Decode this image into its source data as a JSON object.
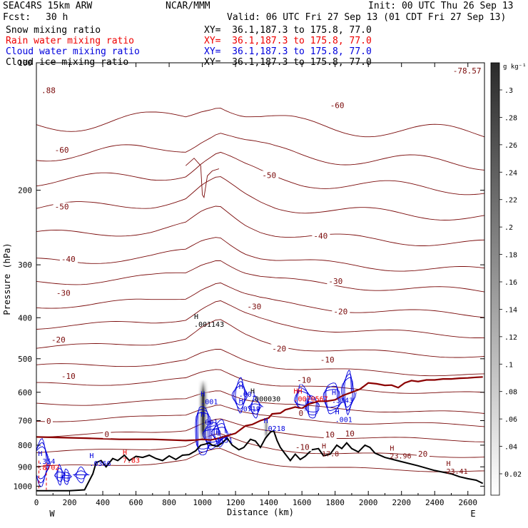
{
  "header": {
    "model": "SEAC4RS 15km ARW",
    "center": "NCAR/MMM",
    "init": "Init: 00 UTC Thu 26 Sep 13",
    "fcst_label": "Fcst:",
    "fcst_value": "30 h",
    "valid": "Valid: 06 UTC Fri 27 Sep 13 (01 CDT Fri 27 Sep 13)"
  },
  "fields": [
    {
      "name": "Snow mixing ratio",
      "xy": "XY=  36.1,187.3 to 175.8, 77.0",
      "color": "#000000"
    },
    {
      "name": "Rain water mixing ratio",
      "xy": "XY=  36.1,187.3 to 175.8, 77.0",
      "color": "#ee0000"
    },
    {
      "name": "Cloud water mixing ratio",
      "xy": "XY=  36.1,187.3 to 175.8, 77.0",
      "color": "#0000dd"
    },
    {
      "name": "Cloud ice mixing ratio",
      "xy": "XY=  36.1,187.3 to 175.8, 77.0",
      "color": "#000000"
    }
  ],
  "colors": {
    "temperature": "#7a0a0a",
    "freezing_level": "#8b0000",
    "terrain": "#000000",
    "cloud_water": "#0000dd",
    "rain": "#ee0000",
    "snow_shade": "#333333"
  },
  "chart_data": {
    "type": "cross-section",
    "xlabel": "Distance (km)",
    "ylabel": "Pressure (hPa)",
    "xlim": [
      0,
      2700
    ],
    "ylim": [
      1050,
      100
    ],
    "y_scale": "log",
    "x_ticks": [
      "0",
      "200",
      "400",
      "600",
      "800",
      "1000",
      "1200",
      "1400",
      "1600",
      "1800",
      "2000",
      "2200",
      "2400",
      "2600"
    ],
    "y_ticks": [
      "100",
      "200",
      "300",
      "400",
      "500",
      "600",
      "700",
      "800",
      "900",
      "1000"
    ],
    "end_labels": {
      "left": "W",
      "right": "E"
    },
    "colorbar": {
      "unit": "g kg⁻¹",
      "ticks": [
        "0.02",
        ".04",
        ".06",
        ".08",
        ".1",
        ".12",
        ".14",
        ".16",
        ".18",
        ".2",
        ".22",
        ".24",
        ".26",
        ".28",
        ".3"
      ]
    },
    "terrain": [
      [
        0,
        1025
      ],
      [
        200,
        1025
      ],
      [
        290,
        1020
      ],
      [
        340,
        935
      ],
      [
        360,
        880
      ],
      [
        390,
        870
      ],
      [
        420,
        900
      ],
      [
        460,
        860
      ],
      [
        490,
        870
      ],
      [
        530,
        845
      ],
      [
        560,
        870
      ],
      [
        600,
        850
      ],
      [
        640,
        855
      ],
      [
        680,
        845
      ],
      [
        720,
        860
      ],
      [
        760,
        870
      ],
      [
        800,
        848
      ],
      [
        840,
        865
      ],
      [
        880,
        845
      ],
      [
        920,
        842
      ],
      [
        960,
        825
      ],
      [
        990,
        800
      ],
      [
        1020,
        795
      ],
      [
        1040,
        790
      ],
      [
        1060,
        800
      ],
      [
        1090,
        805
      ],
      [
        1120,
        790
      ],
      [
        1150,
        770
      ],
      [
        1180,
        800
      ],
      [
        1220,
        820
      ],
      [
        1250,
        810
      ],
      [
        1290,
        775
      ],
      [
        1320,
        782
      ],
      [
        1350,
        810
      ],
      [
        1380,
        770
      ],
      [
        1410,
        745
      ],
      [
        1430,
        740
      ],
      [
        1450,
        780
      ],
      [
        1470,
        810
      ],
      [
        1500,
        840
      ],
      [
        1530,
        870
      ],
      [
        1560,
        840
      ],
      [
        1590,
        865
      ],
      [
        1620,
        850
      ],
      [
        1660,
        820
      ],
      [
        1700,
        815
      ],
      [
        1730,
        848
      ],
      [
        1770,
        840
      ],
      [
        1810,
        800
      ],
      [
        1840,
        815
      ],
      [
        1870,
        790
      ],
      [
        1900,
        815
      ],
      [
        1940,
        830
      ],
      [
        1980,
        800
      ],
      [
        2010,
        810
      ],
      [
        2040,
        835
      ],
      [
        2100,
        855
      ],
      [
        2200,
        875
      ],
      [
        2300,
        895
      ],
      [
        2400,
        918
      ],
      [
        2500,
        935
      ],
      [
        2550,
        950
      ],
      [
        2600,
        960
      ],
      [
        2650,
        968
      ],
      [
        2690,
        985
      ]
    ],
    "freezing_line": [
      [
        0,
        765
      ],
      [
        300,
        770
      ],
      [
        500,
        775
      ],
      [
        700,
        775
      ],
      [
        900,
        780
      ],
      [
        960,
        778
      ],
      [
        1000,
        775
      ],
      [
        1050,
        778
      ],
      [
        1100,
        770
      ],
      [
        1150,
        760
      ],
      [
        1200,
        750
      ],
      [
        1260,
        720
      ],
      [
        1300,
        715
      ],
      [
        1350,
        700
      ],
      [
        1400,
        690
      ],
      [
        1420,
        675
      ],
      [
        1470,
        672
      ],
      [
        1500,
        660
      ],
      [
        1530,
        655
      ],
      [
        1560,
        650
      ],
      [
        1600,
        655
      ],
      [
        1640,
        640
      ],
      [
        1700,
        630
      ],
      [
        1750,
        630
      ],
      [
        1800,
        625
      ],
      [
        1850,
        610
      ],
      [
        1900,
        600
      ],
      [
        1950,
        590
      ],
      [
        2000,
        570
      ],
      [
        2050,
        573
      ],
      [
        2100,
        578
      ],
      [
        2140,
        577
      ],
      [
        2180,
        585
      ],
      [
        2220,
        570
      ],
      [
        2260,
        563
      ],
      [
        2300,
        566
      ],
      [
        2350,
        561
      ],
      [
        2400,
        561
      ],
      [
        2450,
        558
      ],
      [
        2500,
        558
      ],
      [
        2550,
        556
      ],
      [
        2600,
        555
      ],
      [
        2650,
        553
      ],
      [
        2690,
        552
      ]
    ],
    "isotherm_labels": [
      {
        "t": "-60",
        "x": 110,
        "p": 163
      },
      {
        "t": "-60",
        "x": 1770,
        "p": 128
      },
      {
        "t": "-50",
        "x": 110,
        "p": 222
      },
      {
        "t": "-50",
        "x": 1360,
        "p": 187
      },
      {
        "t": "-40",
        "x": 150,
        "p": 295
      },
      {
        "t": "-40",
        "x": 1670,
        "p": 260
      },
      {
        "t": "-30",
        "x": 120,
        "p": 355
      },
      {
        "t": "-30",
        "x": 1270,
        "p": 382
      },
      {
        "t": "-30",
        "x": 1760,
        "p": 333
      },
      {
        "t": "-20",
        "x": 90,
        "p": 458
      },
      {
        "t": "-20",
        "x": 1420,
        "p": 480
      },
      {
        "t": "-20",
        "x": 1790,
        "p": 393
      },
      {
        "t": "-10",
        "x": 150,
        "p": 558
      },
      {
        "t": "-10",
        "x": 1570,
        "p": 570
      },
      {
        "t": "-10",
        "x": 1710,
        "p": 510
      },
      {
        "t": "0",
        "x": 60,
        "p": 712
      },
      {
        "t": "0",
        "x": 410,
        "p": 765
      },
      {
        "t": "0",
        "x": 1580,
        "p": 682
      },
      {
        "t": "10",
        "x": 1740,
        "p": 767
      },
      {
        "t": "20",
        "x": 2300,
        "p": 852
      },
      {
        "t": "-10",
        "x": 1560,
        "p": 820
      },
      {
        "t": "10",
        "x": 1860,
        "p": 762
      }
    ],
    "corner_values": [
      {
        "text": ".88",
        "x": 30,
        "p": 118,
        "color": "temperature"
      },
      {
        "text": "-78.57",
        "x": 2510,
        "p": 106,
        "color": "temperature"
      }
    ],
    "extrema": [
      {
        "mark": "H",
        "value": ".001143",
        "x": 950,
        "p": 420,
        "color": "terrain"
      },
      {
        "mark": "H",
        "value": ".001",
        "x": 990,
        "p": 640,
        "color": "cloud_water"
      },
      {
        "mark": "H",
        "value": ".001",
        "x": 990,
        "p": 715,
        "color": "cloud_water"
      },
      {
        "mark": "H",
        "value": "4151",
        "x": 1080,
        "p": 790,
        "color": "cloud_water"
      },
      {
        "mark": "H",
        "value": ".001",
        "x": 1220,
        "p": 615,
        "color": "cloud_water"
      },
      {
        "mark": "H",
        "value": ".000030",
        "x": 1290,
        "p": 630,
        "color": "terrain"
      },
      {
        "mark": "H",
        "value": ".0719",
        "x": 1220,
        "p": 665,
        "color": "cloud_water"
      },
      {
        "mark": "H",
        "value": ".0218",
        "x": 1370,
        "p": 740,
        "color": "cloud_water"
      },
      {
        "mark": "HH",
        "value": ".0070567",
        "x": 1550,
        "p": 630,
        "color": "rain"
      },
      {
        "mark": "H",
        "value": ".3343",
        "x": 1780,
        "p": 635,
        "color": "cloud_water"
      },
      {
        "mark": "H",
        "value": ".001",
        "x": 1800,
        "p": 705,
        "color": "cloud_water"
      },
      {
        "mark": "H",
        "value": ".0366",
        "x": 320,
        "p": 895,
        "color": "cloud_water"
      },
      {
        "mark": "H",
        "value": "7.83",
        "x": 520,
        "p": 880,
        "color": "rain"
      },
      {
        "mark": "H",
        "value": ".354",
        "x": 10,
        "p": 885,
        "color": "cloud_water"
      },
      {
        "mark": "",
        "value": ".8702",
        "x": 10,
        "p": 915,
        "color": "rain"
      },
      {
        "mark": "H",
        "value": "17.8",
        "x": 1720,
        "p": 850,
        "color": "temperature"
      },
      {
        "mark": "H",
        "value": "23.96",
        "x": 2130,
        "p": 860,
        "color": "temperature"
      },
      {
        "mark": "H",
        "value": "23.41",
        "x": 2470,
        "p": 935,
        "color": "temperature"
      }
    ],
    "snow_columns": [
      {
        "x": 1005,
        "p_top": 560,
        "p_bottom": 790,
        "max": 0.28
      },
      {
        "x": 1385,
        "p_top": 690,
        "p_bottom": 770,
        "max": 0.06
      }
    ]
  }
}
